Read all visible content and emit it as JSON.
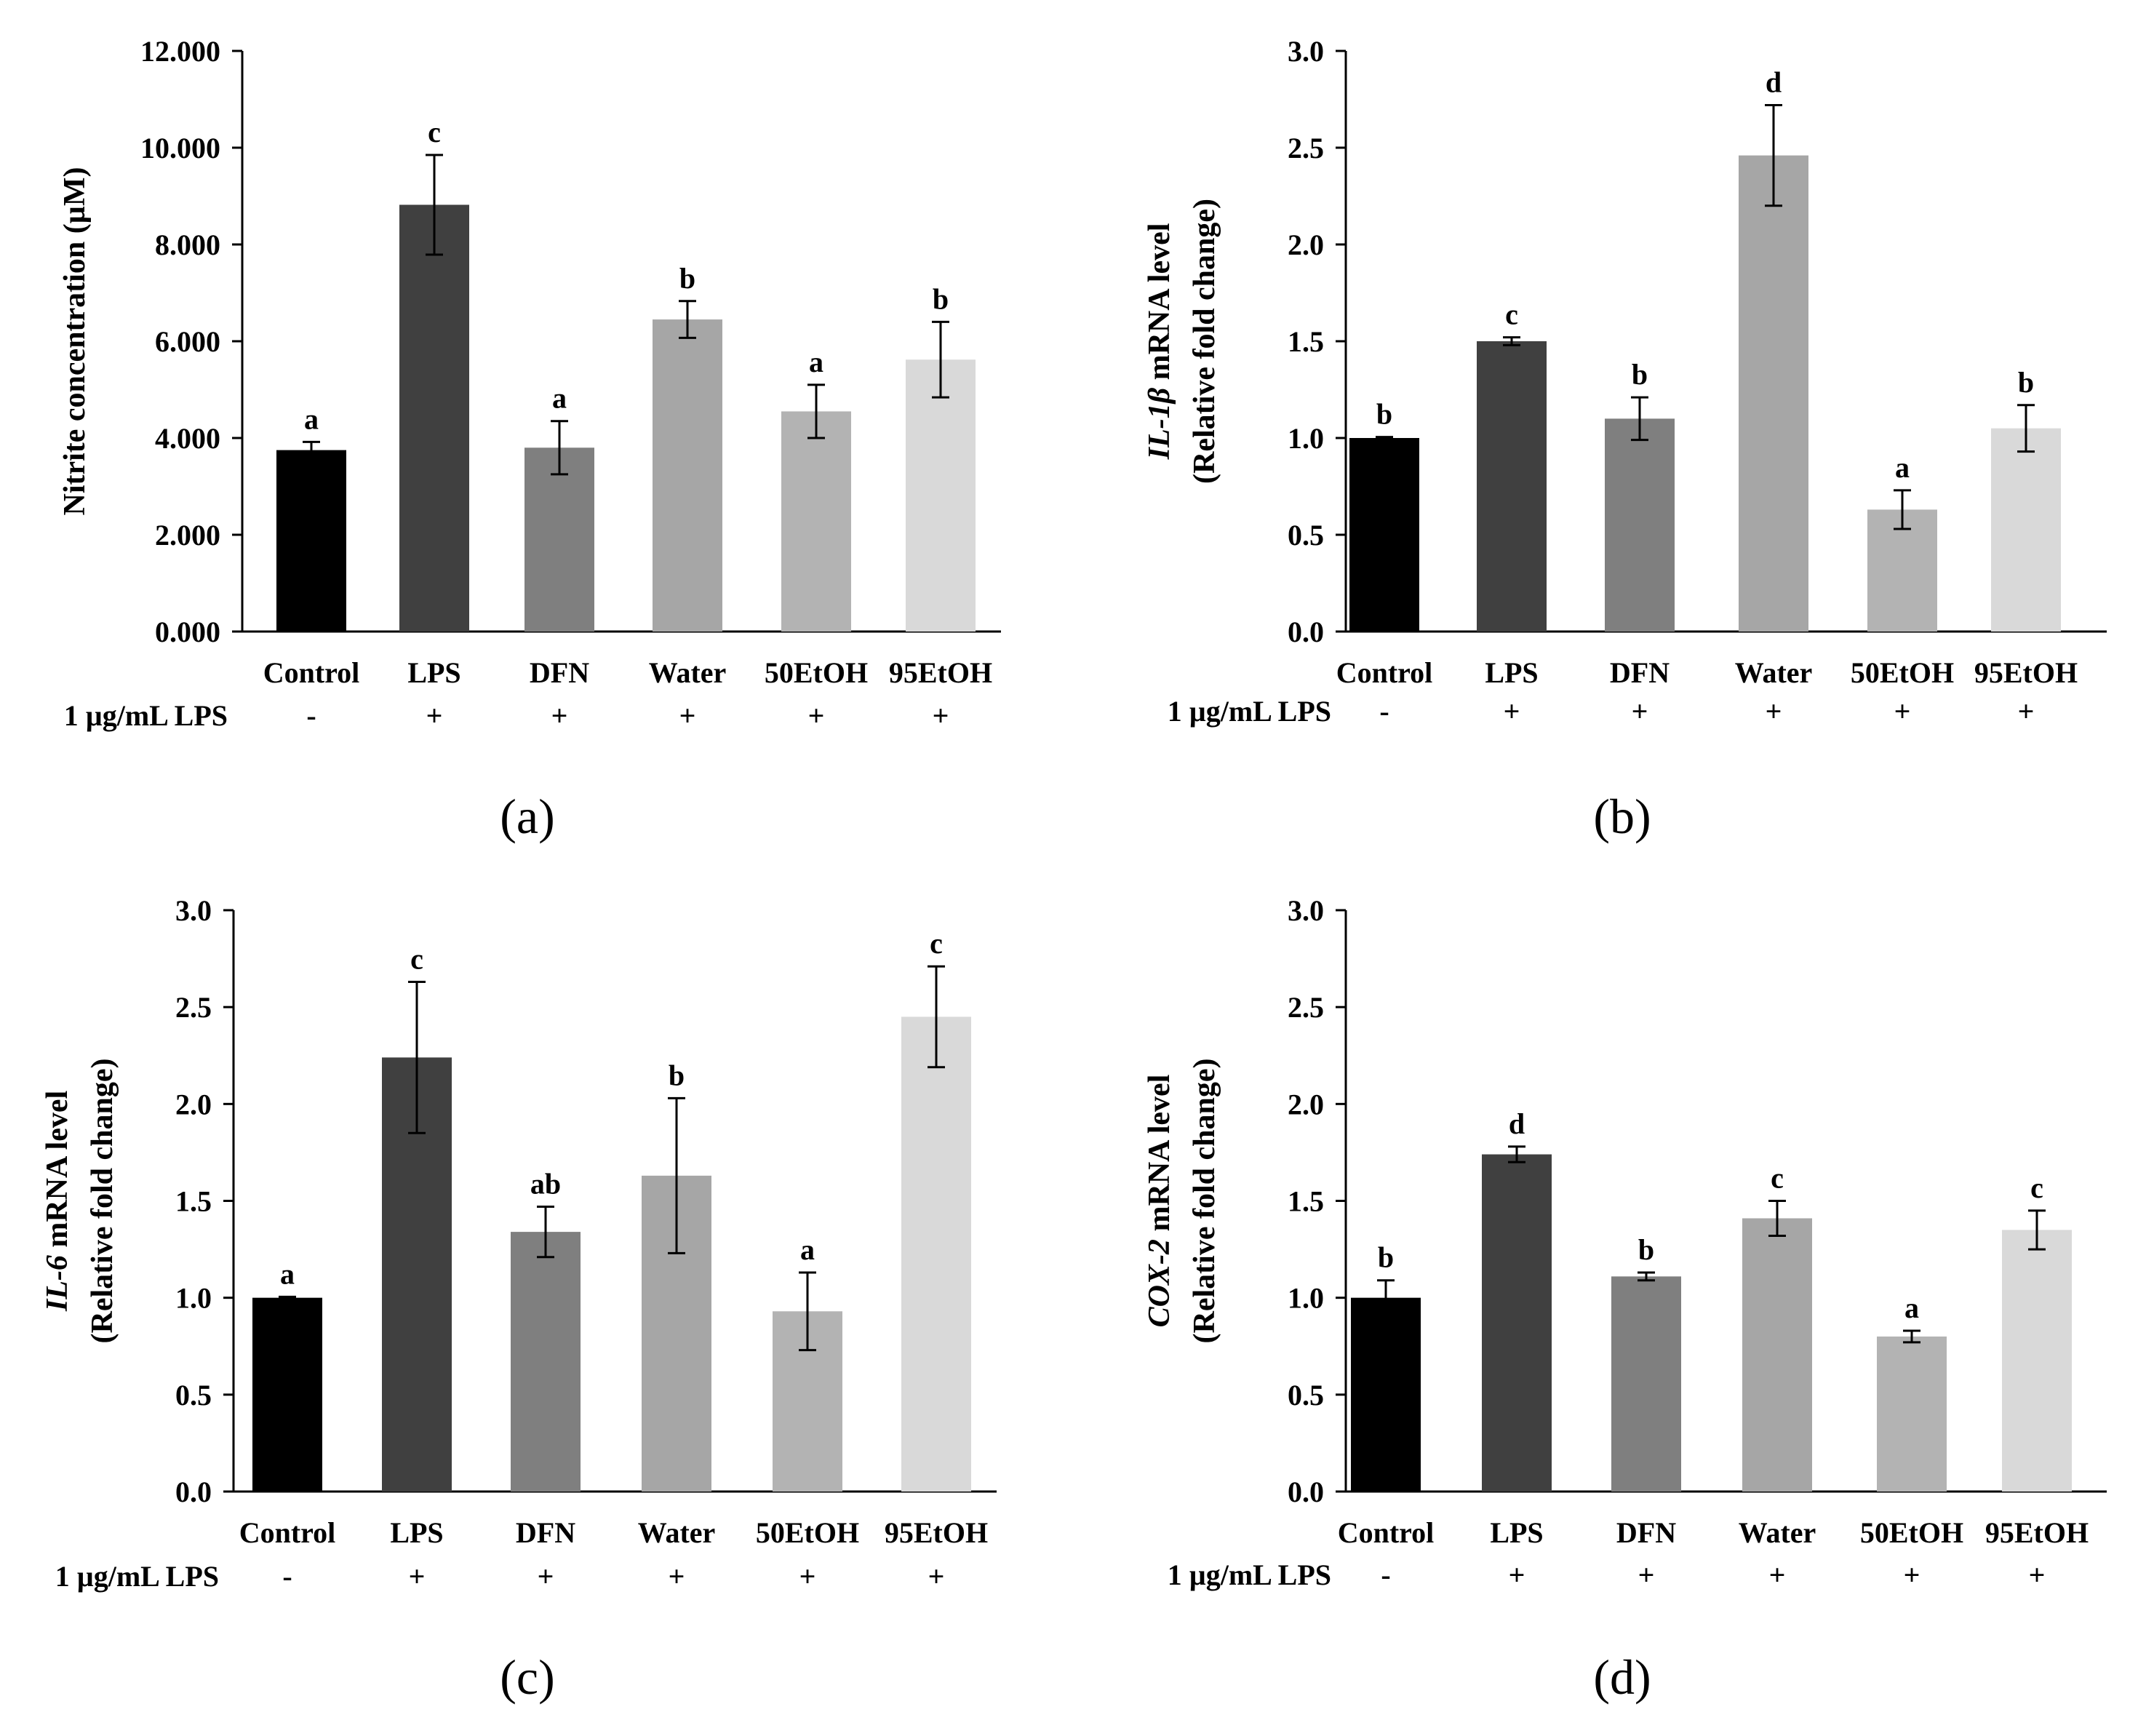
{
  "condition_row": {
    "label": "1 µg/mL LPS",
    "signs": [
      "-",
      "+",
      "+",
      "+",
      "+",
      "+"
    ]
  },
  "chart_data": [
    {
      "type": "bar",
      "panel_label": "(a)",
      "categories": [
        "Control",
        "LPS",
        "DFN",
        "Water",
        "50EtOH",
        "95EtOH"
      ],
      "values": [
        3.75,
        8.82,
        3.8,
        6.45,
        4.55,
        5.62
      ],
      "errors": [
        0.17,
        1.03,
        0.55,
        0.38,
        0.55,
        0.78
      ],
      "significance": [
        "a",
        "c",
        "a",
        "b",
        "a",
        "b"
      ],
      "ylabel": [
        "Nitrite concentration (µM)"
      ],
      "ylim": [
        0,
        12
      ],
      "yticks": [
        "0.000",
        "2.000",
        "4.000",
        "6.000",
        "8.000",
        "10.000",
        "12.000"
      ],
      "colors": [
        "#000000",
        "#404040",
        "#7f7f7f",
        "#a6a6a6",
        "#b3b3b3",
        "#d9d9d9"
      ],
      "grid": false
    },
    {
      "type": "bar",
      "panel_label": "(b)",
      "categories": [
        "Control",
        "LPS",
        "DFN",
        "Water",
        "50EtOH",
        "95EtOH"
      ],
      "values": [
        1.0,
        1.5,
        1.1,
        2.46,
        0.63,
        1.05
      ],
      "errors": [
        0.005,
        0.02,
        0.11,
        0.26,
        0.1,
        0.12
      ],
      "significance": [
        "b",
        "c",
        "b",
        "d",
        "a",
        "b"
      ],
      "ylabel": [
        "IL-1β mRNA level",
        "(Relative fold change)"
      ],
      "ylim": [
        0,
        3
      ],
      "yticks": [
        "0.0",
        "0.5",
        "1.0",
        "1.5",
        "2.0",
        "2.5",
        "3.0"
      ],
      "colors": [
        "#000000",
        "#404040",
        "#7f7f7f",
        "#a6a6a6",
        "#b3b3b3",
        "#d9d9d9"
      ],
      "grid": false
    },
    {
      "type": "bar",
      "panel_label": "(c)",
      "categories": [
        "Control",
        "LPS",
        "DFN",
        "Water",
        "50EtOH",
        "95EtOH"
      ],
      "values": [
        1.0,
        2.24,
        1.34,
        1.63,
        0.93,
        2.45
      ],
      "errors": [
        0.005,
        0.39,
        0.13,
        0.4,
        0.2,
        0.26
      ],
      "significance": [
        "a",
        "c",
        "ab",
        "b",
        "a",
        "c"
      ],
      "ylabel": [
        "IL-6 mRNA level",
        "(Relative fold change)"
      ],
      "ylim": [
        0,
        3
      ],
      "yticks": [
        "0.0",
        "0.5",
        "1.0",
        "1.5",
        "2.0",
        "2.5",
        "3.0"
      ],
      "colors": [
        "#000000",
        "#404040",
        "#7f7f7f",
        "#a6a6a6",
        "#b3b3b3",
        "#d9d9d9"
      ],
      "grid": false
    },
    {
      "type": "bar",
      "panel_label": "(d)",
      "categories": [
        "Control",
        "LPS",
        "DFN",
        "Water",
        "50EtOH",
        "95EtOH"
      ],
      "values": [
        1.0,
        1.74,
        1.11,
        1.41,
        0.8,
        1.35
      ],
      "errors": [
        0.09,
        0.04,
        0.02,
        0.09,
        0.03,
        0.1
      ],
      "significance": [
        "b",
        "d",
        "b",
        "c",
        "a",
        "c"
      ],
      "ylabel": [
        "COX-2 mRNA level",
        "(Relative fold change)"
      ],
      "ylim": [
        0,
        3
      ],
      "yticks": [
        "0.0",
        "0.5",
        "1.0",
        "1.5",
        "2.0",
        "2.5",
        "3.0"
      ],
      "colors": [
        "#000000",
        "#404040",
        "#7f7f7f",
        "#a6a6a6",
        "#b3b3b3",
        "#d9d9d9"
      ],
      "grid": false
    }
  ]
}
